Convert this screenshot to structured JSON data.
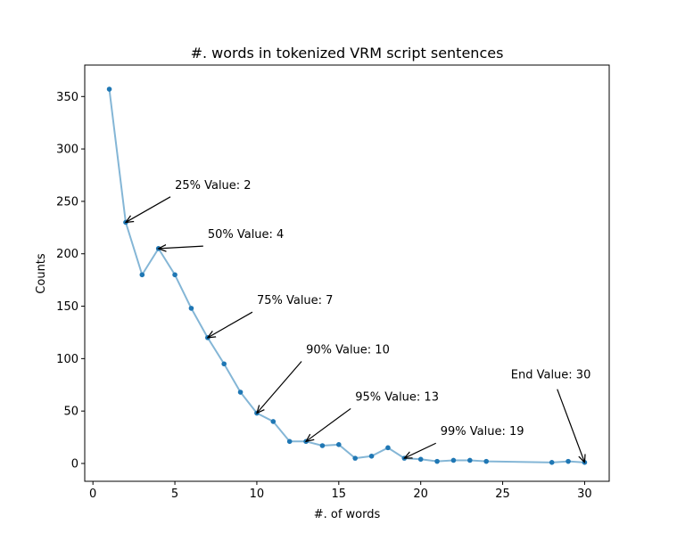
{
  "chart_data": {
    "type": "line",
    "title": "#. words in tokenized VRM script sentences",
    "xlabel": "#. of words",
    "ylabel": "Counts",
    "xlim": [
      -0.5,
      31.5
    ],
    "ylim": [
      -17,
      380
    ],
    "xticks": [
      0,
      5,
      10,
      15,
      20,
      25,
      30
    ],
    "yticks": [
      0,
      50,
      100,
      150,
      200,
      250,
      300,
      350
    ],
    "grid": false,
    "series": [
      {
        "x": [
          1,
          2,
          3,
          4,
          5,
          6,
          7,
          8,
          9,
          10,
          11,
          12,
          13,
          14,
          15,
          16,
          17,
          18,
          19,
          20,
          21,
          22,
          23,
          24,
          28,
          29,
          30
        ],
        "y": [
          357,
          230,
          180,
          205,
          180,
          148,
          120,
          95,
          68,
          48,
          40,
          21,
          21,
          17,
          18,
          5,
          7,
          15,
          5,
          4,
          2,
          3,
          3,
          2,
          1,
          2,
          1
        ],
        "line_color": "#84b6d6",
        "marker_color": "#1f77b4"
      }
    ],
    "annotations": [
      {
        "text": "25% Value: 2",
        "point": [
          2,
          230
        ],
        "text_pos": [
          5,
          262
        ]
      },
      {
        "text": "50% Value: 4",
        "point": [
          4,
          205
        ],
        "text_pos": [
          7,
          215
        ]
      },
      {
        "text": "75% Value: 7",
        "point": [
          7,
          120
        ],
        "text_pos": [
          10,
          152
        ]
      },
      {
        "text": "90% Value: 10",
        "point": [
          10,
          48
        ],
        "text_pos": [
          13,
          105
        ]
      },
      {
        "text": "95% Value: 13",
        "point": [
          13,
          21
        ],
        "text_pos": [
          16,
          60
        ]
      },
      {
        "text": "99% Value: 19",
        "point": [
          19,
          5
        ],
        "text_pos": [
          21.2,
          27
        ]
      },
      {
        "text": "End Value: 30",
        "point": [
          30,
          1
        ],
        "text_pos": [
          25.5,
          81
        ]
      }
    ]
  }
}
